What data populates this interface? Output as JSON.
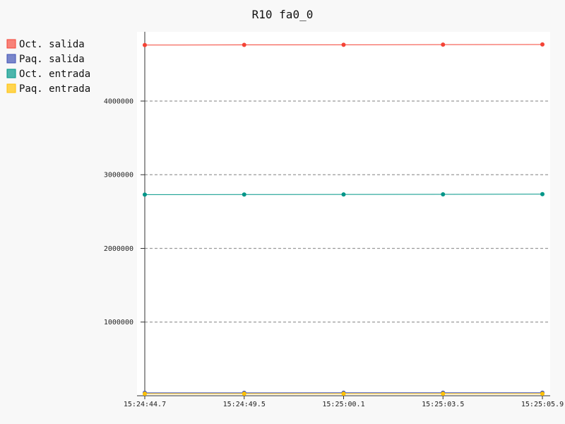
{
  "chart_data": {
    "type": "line",
    "title": "R10 fa0_0",
    "xlabel": "",
    "ylabel": "",
    "categories": [
      "15:24:44.7",
      "15:24:49.5",
      "15:25:00.1",
      "15:25:03.5",
      "15:25:05.9"
    ],
    "y_ticks": [
      "1000000",
      "2000000",
      "3000000",
      "4000000"
    ],
    "ylim": [
      0,
      4940000
    ],
    "grid": "horizontal dashed",
    "legend_position": "top-left",
    "series": [
      {
        "name": "Oct. salida",
        "color": "#f44336",
        "fill": "#f88379",
        "values": [
          4760000,
          4762000,
          4764000,
          4766000,
          4768000
        ]
      },
      {
        "name": "Paq. salida",
        "color": "#3f51b5",
        "fill": "#7986cb",
        "values": [
          40000,
          40100,
          40200,
          40300,
          40400
        ]
      },
      {
        "name": "Oct. entrada",
        "color": "#009688",
        "fill": "#4db6ac",
        "values": [
          2730000,
          2731000,
          2732000,
          2734000,
          2736000
        ]
      },
      {
        "name": "Paq. entrada",
        "color": "#ffc107",
        "fill": "#ffd54f",
        "values": [
          27000,
          27100,
          27200,
          27300,
          27400
        ]
      }
    ]
  }
}
